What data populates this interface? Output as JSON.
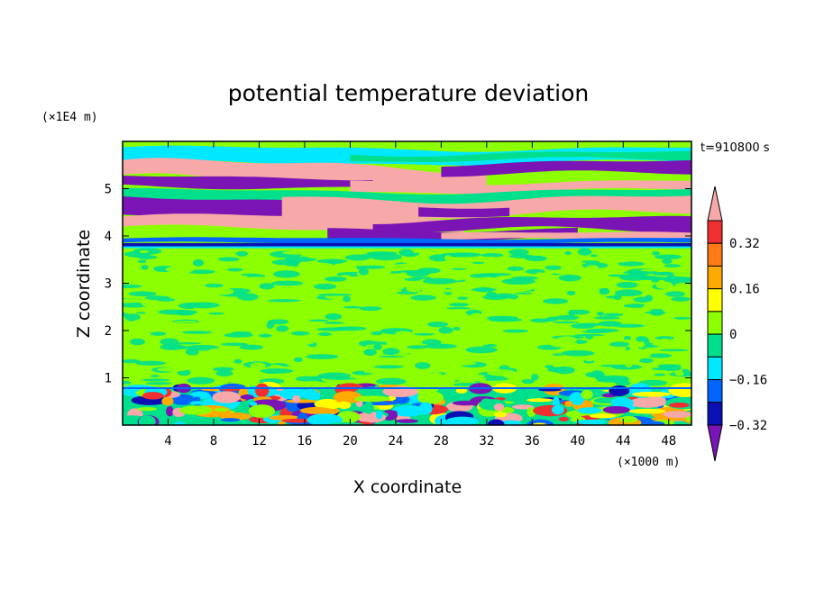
{
  "chart_data": {
    "type": "heatmap",
    "title": "potential temperature deviation",
    "xlabel": "X coordinate",
    "ylabel": "Z coordinate",
    "x_unit": "(×1000 m)",
    "y_unit": "(×1E4 m)",
    "time_label": "t=910800 s",
    "xlim": [
      0,
      50
    ],
    "ylim": [
      0,
      6
    ],
    "x_ticks": [
      "4",
      "8",
      "12",
      "16",
      "20",
      "24",
      "28",
      "32",
      "36",
      "40",
      "44",
      "48"
    ],
    "y_ticks": [
      "1",
      "2",
      "3",
      "4",
      "5"
    ],
    "colorbar": {
      "labels": [
        "0.32",
        "0.16",
        "0",
        "−0.16",
        "−0.32"
      ],
      "colors": [
        "#f7a8a8",
        "#f03030",
        "#ff7a14",
        "#ffaa00",
        "#ffff00",
        "#8cff00",
        "#00e08c",
        "#00e8ff",
        "#0066ff",
        "#0a10b4",
        "#7a14b4"
      ]
    },
    "layers": [
      {
        "z": [
          0,
          0.8
        ],
        "dominant": "mixed turbulent"
      },
      {
        "z": [
          0.8,
          3.75
        ],
        "dominant": "0 to 0.08"
      },
      {
        "z": [
          3.75,
          3.85
        ],
        "dominant": "below -0.32"
      },
      {
        "z": [
          3.85,
          5.8
        ],
        "dominant": "alternating above 0.32 / below -0.32"
      },
      {
        "z": [
          5.8,
          6.0
        ],
        "dominant": "0 to 0.08"
      }
    ]
  }
}
